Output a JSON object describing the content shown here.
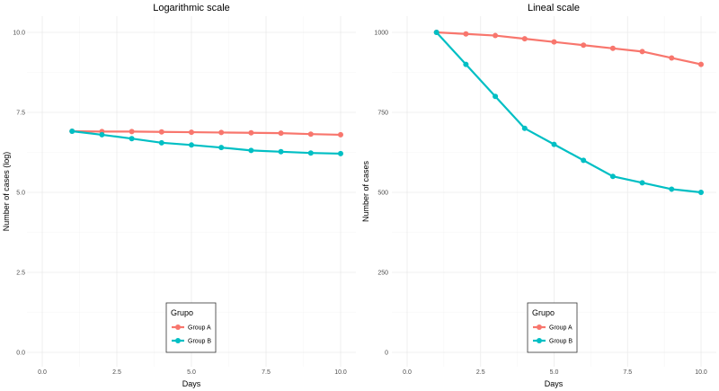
{
  "chart_data": [
    {
      "type": "line",
      "title": "Logarithmic scale",
      "xlabel": "Days",
      "ylabel": "Number of cases (log)",
      "x": [
        1,
        2,
        3,
        4,
        5,
        6,
        7,
        8,
        9,
        10
      ],
      "xlim": [
        0,
        10
      ],
      "ylim": [
        0,
        10
      ],
      "xticks": [
        "0.0",
        "2.5",
        "5.0",
        "7.5",
        "10.0"
      ],
      "yticks": [
        "0.0",
        "2.5",
        "5.0",
        "7.5",
        "10.0"
      ],
      "grid": true,
      "legend": {
        "title": "Grupo",
        "placement": "bottom-center"
      },
      "series": [
        {
          "name": "Group A",
          "color": "#F8766D",
          "values": [
            6.91,
            6.9,
            6.9,
            6.89,
            6.88,
            6.87,
            6.86,
            6.85,
            6.82,
            6.8
          ]
        },
        {
          "name": "Group B",
          "color": "#00BFC4",
          "values": [
            6.91,
            6.8,
            6.68,
            6.55,
            6.48,
            6.4,
            6.31,
            6.27,
            6.23,
            6.21
          ]
        }
      ]
    },
    {
      "type": "line",
      "title": "Lineal scale",
      "xlabel": "Days",
      "ylabel": "Number of cases",
      "x": [
        1,
        2,
        3,
        4,
        5,
        6,
        7,
        8,
        9,
        10
      ],
      "xlim": [
        0,
        10
      ],
      "ylim": [
        0,
        1000
      ],
      "xticks": [
        "0.0",
        "2.5",
        "5.0",
        "7.5",
        "10.0"
      ],
      "yticks": [
        "0",
        "250",
        "500",
        "750",
        "1000"
      ],
      "grid": true,
      "legend": {
        "title": "Grupo",
        "placement": "bottom-center"
      },
      "series": [
        {
          "name": "Group A",
          "color": "#F8766D",
          "values": [
            1000,
            995,
            990,
            980,
            970,
            960,
            950,
            940,
            920,
            900
          ]
        },
        {
          "name": "Group B",
          "color": "#00BFC4",
          "values": [
            1000,
            900,
            800,
            700,
            650,
            600,
            550,
            530,
            510,
            500
          ]
        }
      ]
    }
  ]
}
